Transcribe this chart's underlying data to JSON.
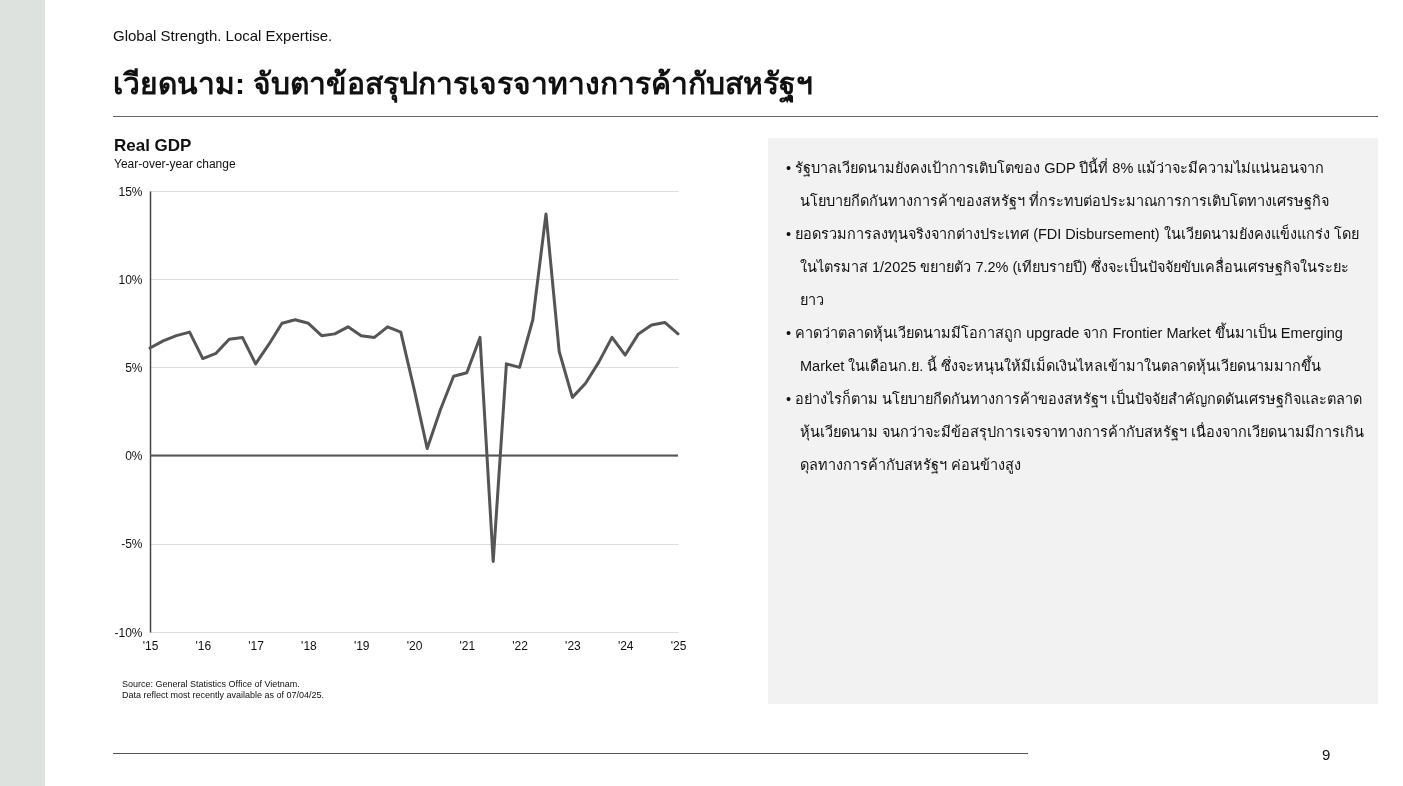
{
  "chart_data": {
    "type": "line",
    "title": "Real GDP",
    "subtitle": "Year-over-year change",
    "x": [
      2015,
      2015.25,
      2015.5,
      2015.75,
      2016,
      2016.25,
      2016.5,
      2016.75,
      2017,
      2017.25,
      2017.5,
      2017.75,
      2018,
      2018.25,
      2018.5,
      2018.75,
      2019,
      2019.25,
      2019.5,
      2019.75,
      2020,
      2020.25,
      2020.5,
      2020.75,
      2021,
      2021.25,
      2021.5,
      2021.75,
      2022,
      2022.25,
      2022.5,
      2022.75,
      2023,
      2023.25,
      2023.5,
      2023.75,
      2024,
      2024.25,
      2024.5,
      2024.75,
      2025
    ],
    "series": [
      {
        "color": "#555555",
        "values": [
          6.1,
          6.5,
          6.8,
          7.0,
          5.5,
          5.8,
          6.6,
          6.7,
          5.2,
          6.3,
          7.5,
          7.7,
          7.5,
          6.8,
          6.9,
          7.3,
          6.8,
          6.7,
          7.3,
          7.0,
          3.8,
          0.4,
          2.6,
          4.5,
          4.7,
          6.7,
          -6.0,
          5.2,
          5.0,
          7.7,
          13.7,
          5.9,
          3.3,
          4.1,
          5.3,
          6.7,
          5.7,
          6.9,
          7.4,
          7.55,
          6.9
        ]
      }
    ],
    "xlim": [
      2015,
      2025
    ],
    "xticks": [
      {
        "value": 2015,
        "label": "'15"
      },
      {
        "value": 2016,
        "label": "'16"
      },
      {
        "value": 2017,
        "label": "'17"
      },
      {
        "value": 2018,
        "label": "'18"
      },
      {
        "value": 2019,
        "label": "'19"
      },
      {
        "value": 2020,
        "label": "'20"
      },
      {
        "value": 2021,
        "label": "'21"
      },
      {
        "value": 2022,
        "label": "'22"
      },
      {
        "value": 2023,
        "label": "'23"
      },
      {
        "value": 2024,
        "label": "'24"
      },
      {
        "value": 2025,
        "label": "'25"
      }
    ],
    "ylim": [
      -10,
      15
    ],
    "yticks": [
      {
        "value": -10,
        "label": "-10%"
      },
      {
        "value": -5,
        "label": "-5%"
      },
      {
        "value": 0,
        "label": "0%"
      },
      {
        "value": 5,
        "label": "5%"
      },
      {
        "value": 10,
        "label": "10%"
      },
      {
        "value": 15,
        "label": "15%"
      }
    ],
    "grid": "y",
    "ref_lines": [
      {
        "axis": "y",
        "value": 0,
        "color": "#555555"
      }
    ],
    "annotations": [
      "Global Strength.  Local Expertise.",
      "เวียดนาม: จับตาข้อสรุปการเจรจาทางการค้ากับสหรัฐฯ",
      "• รัฐบาลเวียดนามยังคงเป้าการเติบโตของ GDP ปีนี้ที่ 8% แม้ว่าจะมีความไม่แน่นอนจากนโยบายกีดกันทางการค้าของสหรัฐฯ ที่กระทบต่อประมาณการการเติบโตทางเศรษฐกิจ",
      "• ยอดรวมการลงทุนจริงจากต่างประเทศ (FDI Disbursement) ในเวียดนามยังคงแข็งแกร่ง โดยในไตรมาส 1/2025 ขยายตัว 7.2% (เทียบรายปี) ซึ่งจะเป็นปัจจัยขับเคลื่อนเศรษฐกิจในระยะยาว",
      "• คาดว่าตลาดหุ้นเวียดนามมีโอกาสถูก upgrade จาก Frontier Market ขึ้นมาเป็น Emerging Market ในเดือนก.ย. นี้ ซึ่งจะหนุนให้มีเม็ดเงินไหลเข้ามาในตลาดหุ้นเวียดนามมากขึ้น",
      "• อย่างไรก็ตาม นโยบายกีดกันทางการค้าของสหรัฐฯ เป็นปัจจัยสำคัญกดดันเศรษฐกิจและตลาดหุ้นเวียดนาม จนกว่าจะมีข้อสรุปการเจรจาทางการค้ากับสหรัฐฯ เนื่องจากเวียดนามมีการเกินดุลทางการค้ากับสหรัฐฯ ค่อนข้างสูง",
      "Source: General Statistics Office of Vietnam.",
      "Data reflect most recently available as of 07/04/25.",
      "9"
    ]
  }
}
